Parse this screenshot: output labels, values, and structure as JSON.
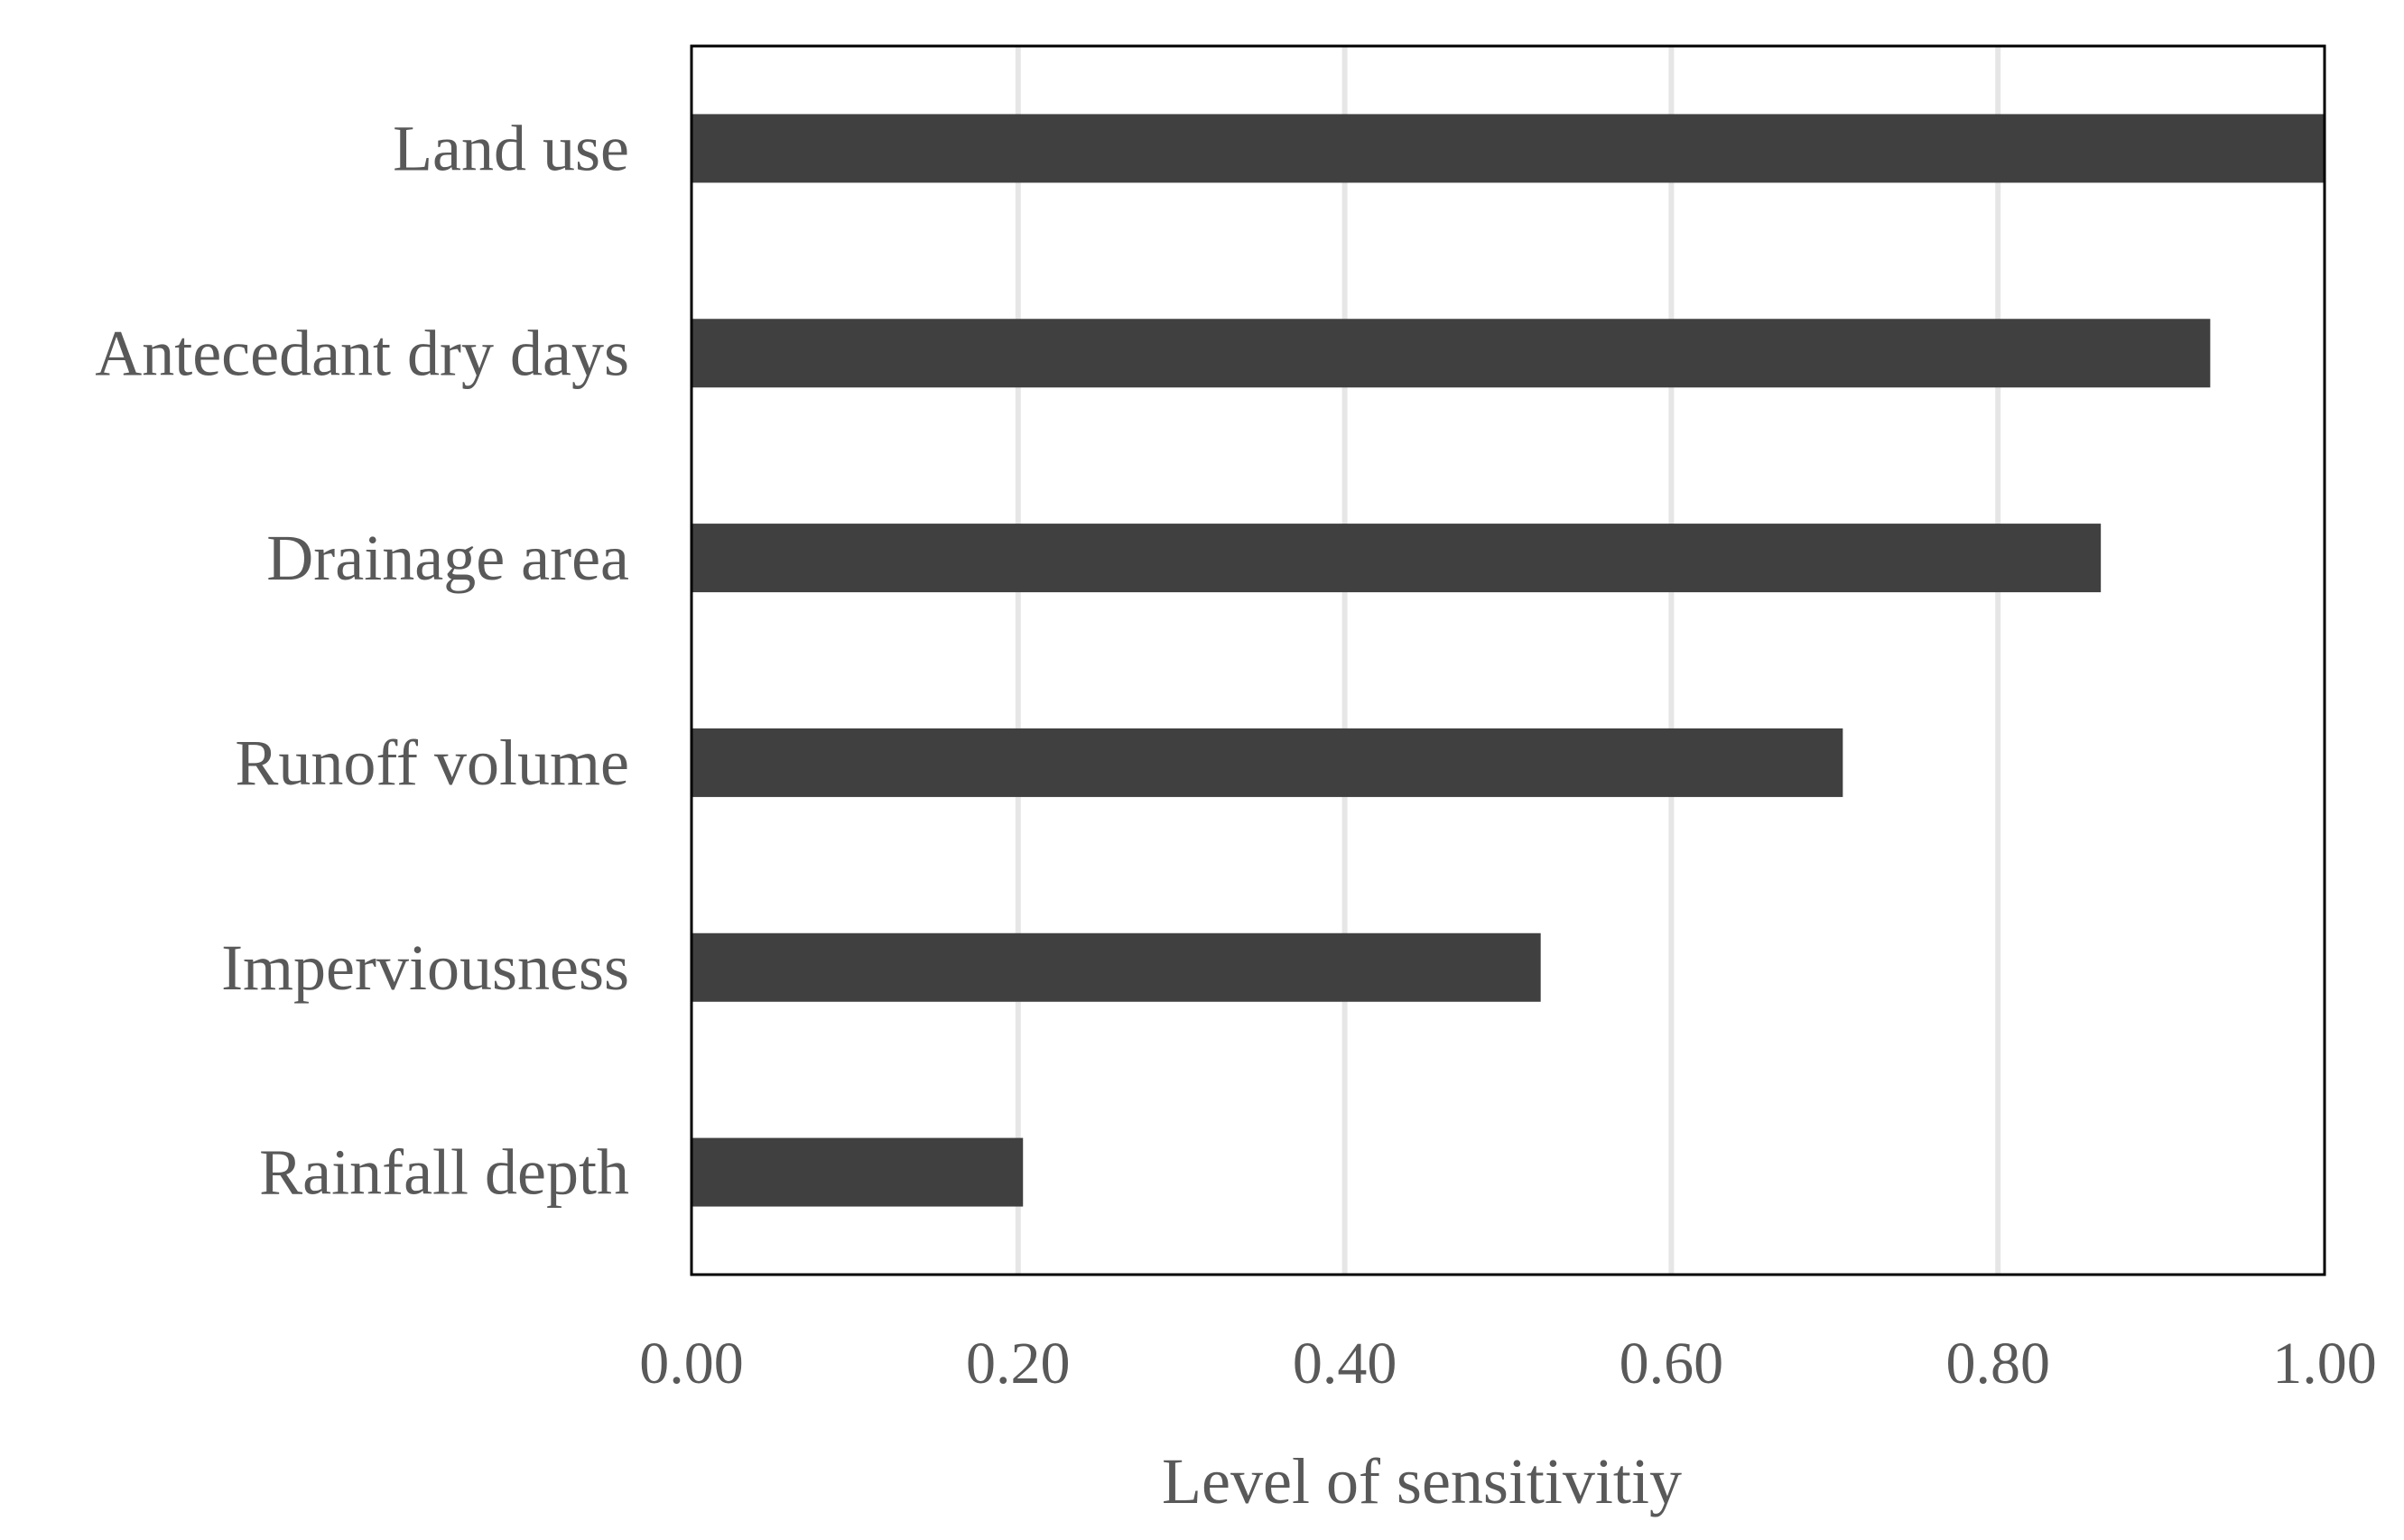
{
  "chart_data": {
    "type": "bar",
    "orientation": "horizontal",
    "categories": [
      "Land use",
      "Antecedant dry days",
      "Drainage area",
      "Runoff volume",
      "Imperviousness",
      "Rainfall depth"
    ],
    "values": [
      1.0,
      0.93,
      0.863,
      0.705,
      0.52,
      0.203
    ],
    "xlabel": "Level  of sensitivitiy",
    "ylabel": "",
    "title": "",
    "xlim": [
      0,
      1.0
    ],
    "x_ticks": [
      "0.00",
      "0.20",
      "0.40",
      "0.60",
      "0.80",
      "1.00"
    ],
    "grid": "vertical",
    "legend": "none",
    "bar_color": "#404040"
  }
}
